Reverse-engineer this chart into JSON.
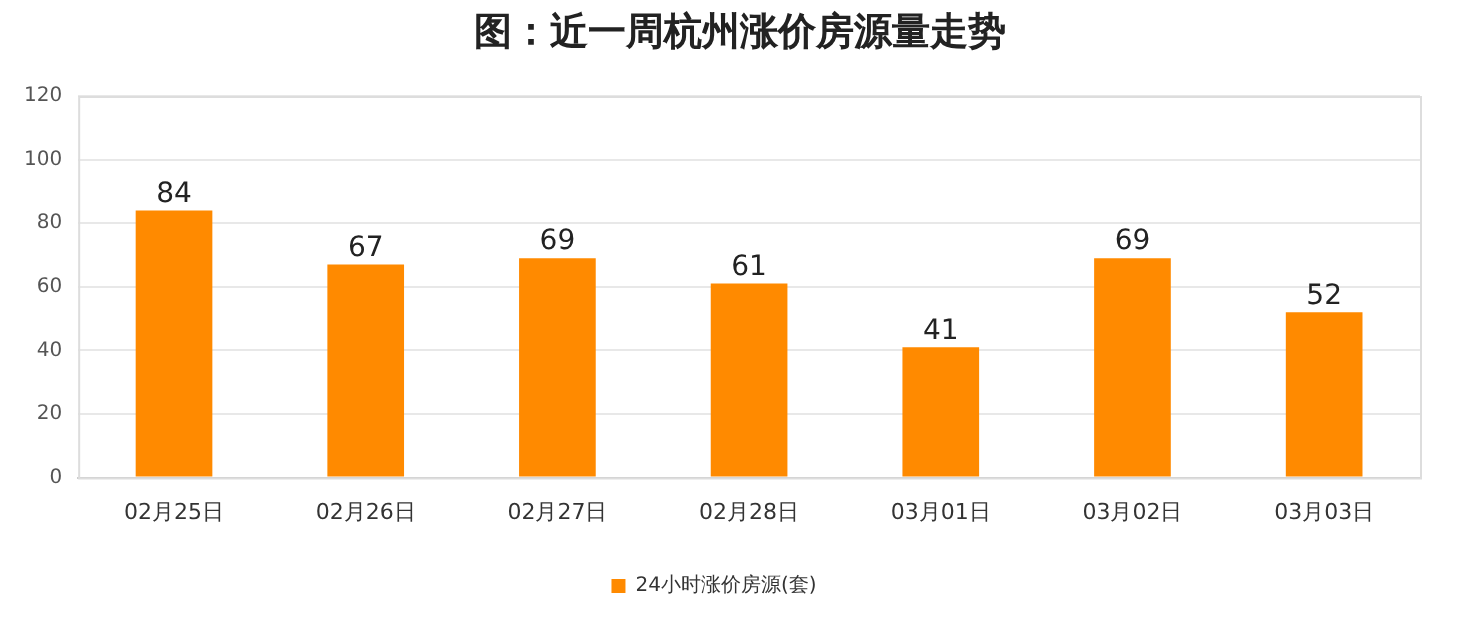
{
  "chart_data": {
    "type": "bar",
    "title": "图：近一周杭州涨价房源量走势",
    "categories": [
      "02月25日",
      "02月26日",
      "02月27日",
      "02月28日",
      "03月01日",
      "03月02日",
      "03月03日"
    ],
    "series": [
      {
        "name": "24小时涨价房源(套)",
        "color": "#ff8a00",
        "values": [
          84,
          67,
          69,
          61,
          41,
          69,
          52
        ]
      }
    ],
    "ylim": [
      0,
      120
    ],
    "yticks": [
      0,
      20,
      40,
      60,
      80,
      100,
      120
    ],
    "grid": "y",
    "legend": "bottom",
    "data_labels": true
  }
}
